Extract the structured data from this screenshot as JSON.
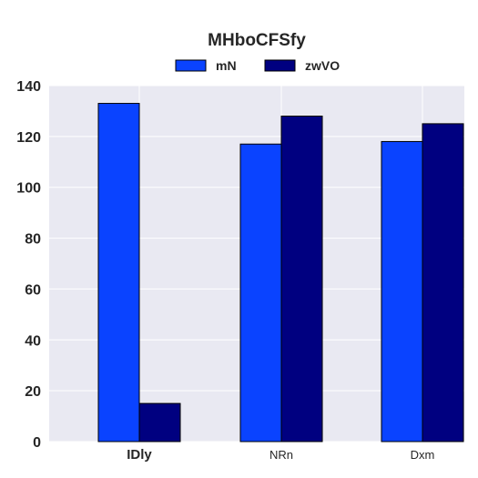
{
  "chart_data": {
    "type": "bar",
    "title": "MHboCFSfy",
    "xlabel": "",
    "ylabel": "",
    "categories": [
      "IDly",
      "NRn",
      "Dxm"
    ],
    "series": [
      {
        "name": "mN",
        "values": [
          133,
          117,
          118
        ],
        "color": "#0a43ff"
      },
      {
        "name": "zwVO",
        "values": [
          15,
          128,
          125
        ],
        "color": "#000080"
      }
    ],
    "ylim": [
      0,
      140
    ],
    "yticks": [
      0,
      20,
      40,
      60,
      80,
      100,
      120,
      140
    ],
    "grid": true,
    "legend_position": "top-center",
    "plot_background": "#e9e9f2"
  }
}
